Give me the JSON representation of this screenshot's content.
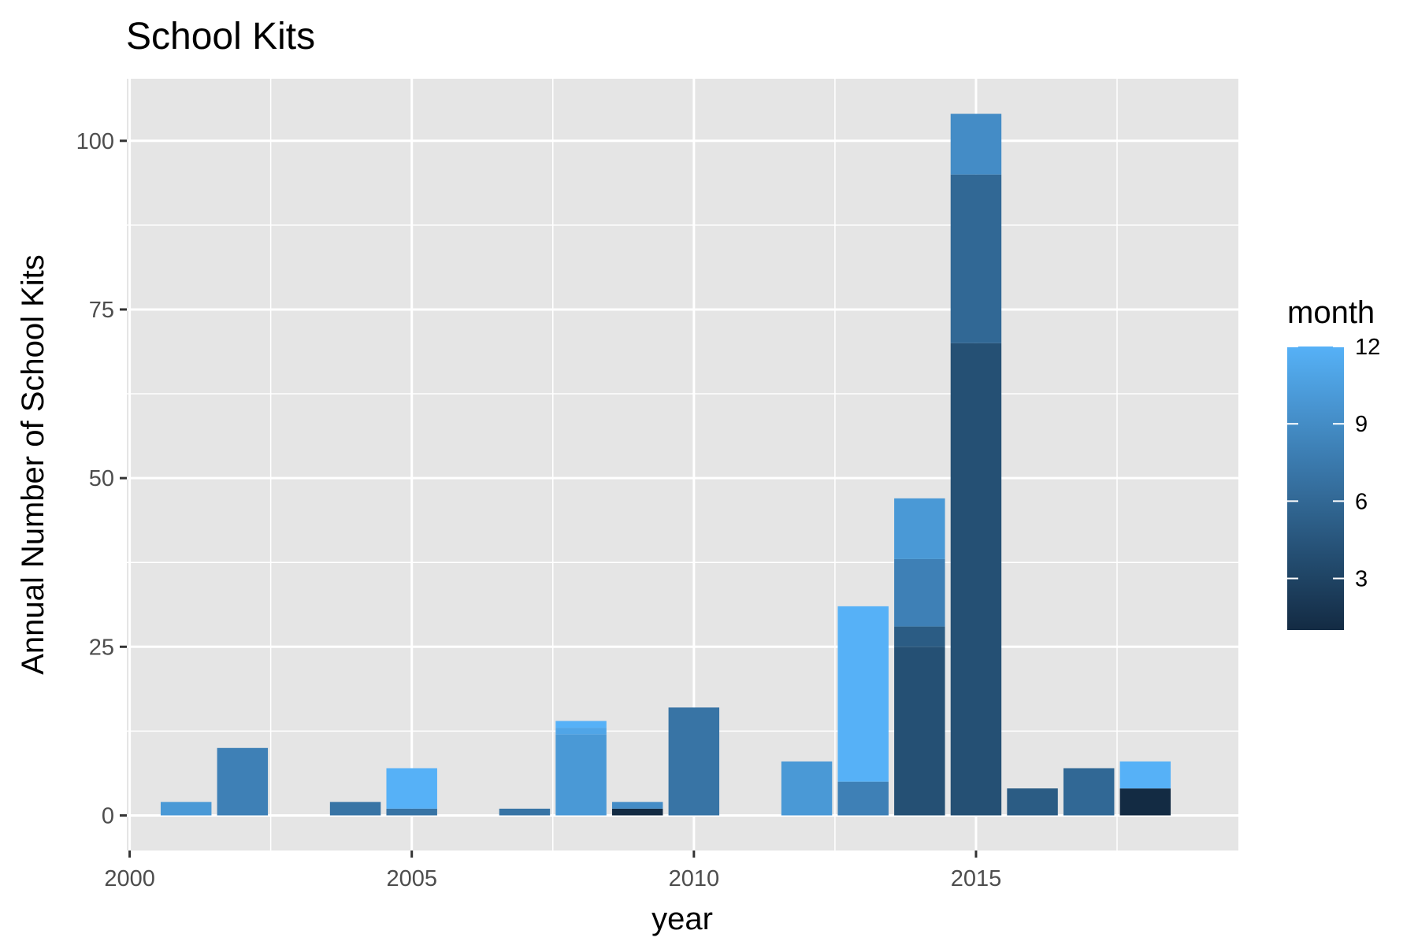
{
  "chart_data": {
    "type": "bar",
    "stacked": true,
    "title": "School Kits",
    "xlabel": "year",
    "ylabel": "Annual Number of School Kits",
    "xlim": [
      1999.95,
      2019.65
    ],
    "ylim": [
      -5.2,
      109.2
    ],
    "x_ticks": [
      2000,
      2005,
      2010,
      2015
    ],
    "x_tick_labels": [
      "2000",
      "2005",
      "2010",
      "2015"
    ],
    "y_ticks": [
      0,
      25,
      50,
      75,
      100
    ],
    "y_tick_labels": [
      "0",
      "25",
      "50",
      "75",
      "100"
    ],
    "grid": true,
    "background": "#e5e5e5",
    "legend": {
      "title": "month",
      "position": "right",
      "type": "colorbar",
      "range": [
        1,
        12
      ],
      "ticks": [
        3,
        6,
        9,
        12
      ],
      "tick_labels": [
        "3",
        "6",
        "9",
        "12"
      ],
      "color_low": "#132b43",
      "color_high": "#56b1f7"
    },
    "bars": [
      {
        "year": 2001,
        "segments": [
          {
            "month": 10,
            "value": 2
          }
        ]
      },
      {
        "year": 2002,
        "segments": [
          {
            "month": 8,
            "value": 10
          }
        ]
      },
      {
        "year": 2004,
        "segments": [
          {
            "month": 7,
            "value": 2
          }
        ]
      },
      {
        "year": 2005,
        "segments": [
          {
            "month": 7,
            "value": 1
          },
          {
            "month": 12,
            "value": 6
          }
        ]
      },
      {
        "year": 2007,
        "segments": [
          {
            "month": 7,
            "value": 1
          }
        ]
      },
      {
        "year": 2008,
        "segments": [
          {
            "month": 10,
            "value": 12
          },
          {
            "month": 11,
            "value": 1
          },
          {
            "month": 12,
            "value": 1
          }
        ]
      },
      {
        "year": 2009,
        "segments": [
          {
            "month": 1,
            "value": 1
          },
          {
            "month": 9,
            "value": 1
          }
        ]
      },
      {
        "year": 2010,
        "segments": [
          {
            "month": 7,
            "value": 16
          }
        ]
      },
      {
        "year": 2012,
        "segments": [
          {
            "month": 10,
            "value": 8
          }
        ]
      },
      {
        "year": 2013,
        "segments": [
          {
            "month": 8,
            "value": 5
          },
          {
            "month": 12,
            "value": 26
          }
        ]
      },
      {
        "year": 2014,
        "segments": [
          {
            "month": 4,
            "value": 25
          },
          {
            "month": 5,
            "value": 3
          },
          {
            "month": 8,
            "value": 10
          },
          {
            "month": 10,
            "value": 9
          }
        ]
      },
      {
        "year": 2015,
        "segments": [
          {
            "month": 4,
            "value": 70
          },
          {
            "month": 6,
            "value": 25
          },
          {
            "month": 9,
            "value": 9
          }
        ]
      },
      {
        "year": 2016,
        "segments": [
          {
            "month": 5,
            "value": 4
          }
        ]
      },
      {
        "year": 2017,
        "segments": [
          {
            "month": 6,
            "value": 7
          }
        ]
      },
      {
        "year": 2018,
        "segments": [
          {
            "month": 1,
            "value": 4
          },
          {
            "month": 12,
            "value": 4
          }
        ]
      }
    ]
  }
}
